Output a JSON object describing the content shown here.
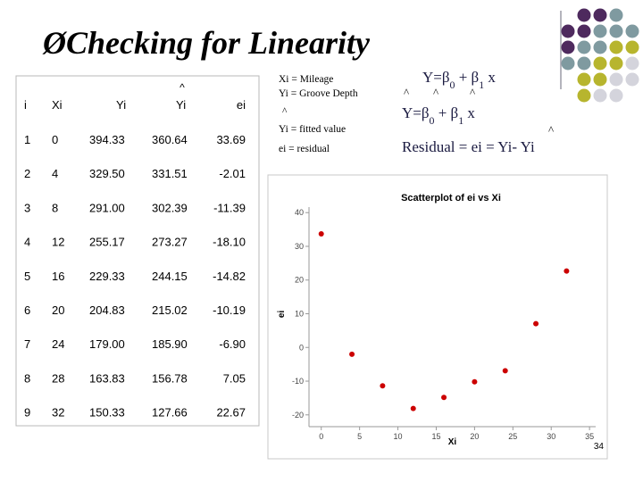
{
  "bullet": "Ø",
  "title": "Checking for Linearity",
  "table": {
    "header": [
      "i",
      "Xi",
      "Yi",
      {
        "hat": "^",
        "text": "Yi"
      },
      "ei"
    ],
    "rows": [
      [
        "1",
        "0",
        "394.33",
        "360.64",
        "33.69"
      ],
      [
        "2",
        "4",
        "329.50",
        "331.51",
        "-2.01"
      ],
      [
        "3",
        "8",
        "291.00",
        "302.39",
        "-11.39"
      ],
      [
        "4",
        "12",
        "255.17",
        "273.27",
        "-18.10"
      ],
      [
        "5",
        "16",
        "229.33",
        "244.15",
        "-14.82"
      ],
      [
        "6",
        "20",
        "204.83",
        "215.02",
        "-10.19"
      ],
      [
        "7",
        "24",
        "179.00",
        "185.90",
        "-6.90"
      ],
      [
        "8",
        "28",
        "163.83",
        "156.78",
        "7.05"
      ],
      [
        "9",
        "32",
        "150.33",
        "127.66",
        "22.67"
      ]
    ]
  },
  "notes": [
    "Xi = Mileage",
    "Yi = Groove Depth",
    "^",
    "Yi = fitted value",
    "ei = residual"
  ],
  "formula1": [
    "Y=β",
    "0",
    " + β",
    "1",
    " x"
  ],
  "hats": [
    "^",
    "^",
    "^"
  ],
  "formula2": [
    "Y=β",
    "0",
    " + β",
    "1",
    " x"
  ],
  "residual_hat": "^",
  "residual": "Residual = ei = Yi- Yi",
  "chart_data": {
    "type": "scatter",
    "title": "Scatterplot of ei vs Xi",
    "x_label": "Xi",
    "y_label": "ei",
    "x": [
      0,
      4,
      8,
      12,
      16,
      20,
      24,
      28,
      32
    ],
    "series": [
      {
        "color": "#cc0000",
        "values": [
          33.69,
          -2.01,
          -11.39,
          -18.1,
          -14.82,
          -10.19,
          -6.9,
          7.05,
          22.67
        ]
      }
    ],
    "xlim": [
      -1.6,
      35.8
    ],
    "ylim": [
      -23.5,
      43.5
    ],
    "xticks": [
      0,
      5,
      10,
      15,
      20,
      25,
      30,
      35
    ],
    "yticks": [
      -20,
      -10,
      0,
      10,
      20,
      30,
      40
    ]
  },
  "page_number": "34"
}
